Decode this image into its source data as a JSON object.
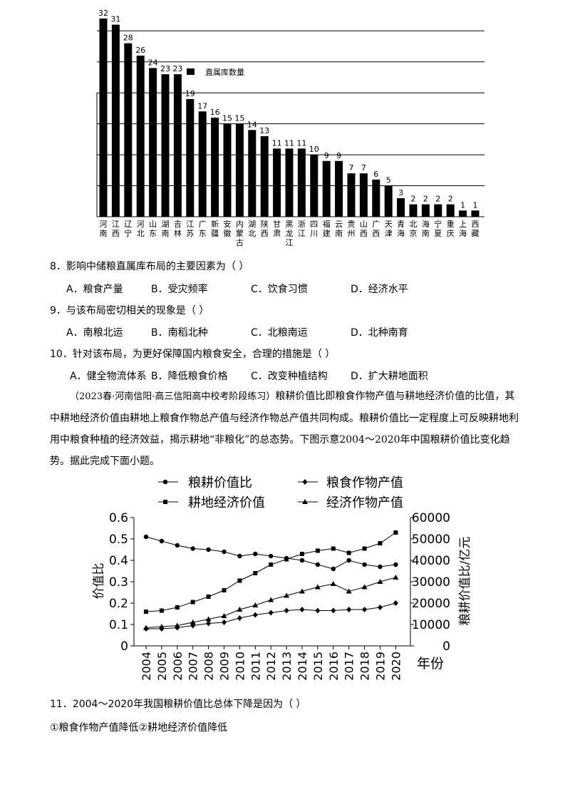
{
  "bar_chart": {
    "legend": "直属库数量",
    "provinces": [
      "河南",
      "江西",
      "辽宁",
      "河北",
      "山东",
      "湖南",
      "吉林",
      "江苏",
      "广东",
      "新疆",
      "安徽",
      "内蒙古",
      "湖北",
      "陕西",
      "甘肃",
      "黑龙江",
      "浙江",
      "四川",
      "福建",
      "云南",
      "贵州",
      "山西",
      "广西",
      "天津",
      "青海",
      "北京",
      "海南",
      "宁夏",
      "重庆",
      "上海",
      "西藏"
    ],
    "values": [
      32,
      31,
      28,
      26,
      24,
      23,
      23,
      19,
      17,
      16,
      15,
      15,
      14,
      13,
      11,
      11,
      11,
      10,
      9,
      9,
      7,
      7,
      6,
      5,
      3,
      2,
      2,
      2,
      2,
      1,
      1
    ]
  },
  "chart_data": [
    {
      "type": "bar",
      "legend": [
        "直属库数量"
      ],
      "categories": [
        "河南",
        "江西",
        "辽宁",
        "河北",
        "山东",
        "湖南",
        "吉林",
        "江苏",
        "广东",
        "新疆",
        "安徽",
        "内蒙古",
        "湖北",
        "陕西",
        "甘肃",
        "黑龙江",
        "浙江",
        "四川",
        "福建",
        "云南",
        "贵州",
        "山西",
        "广西",
        "天津",
        "青海",
        "北京",
        "海南",
        "宁夏",
        "重庆",
        "上海",
        "西藏"
      ],
      "series": [
        {
          "name": "直属库数量",
          "values": [
            32,
            31,
            28,
            26,
            24,
            23,
            23,
            19,
            17,
            16,
            15,
            15,
            14,
            13,
            11,
            11,
            11,
            10,
            9,
            9,
            7,
            7,
            6,
            5,
            3,
            2,
            2,
            2,
            2,
            1,
            1
          ]
        }
      ],
      "ylim": [
        0,
        35
      ],
      "grid": "horizontal"
    },
    {
      "type": "line",
      "x": [
        2004,
        2005,
        2006,
        2007,
        2008,
        2009,
        2010,
        2011,
        2012,
        2013,
        2014,
        2015,
        2016,
        2017,
        2018,
        2019,
        2020
      ],
      "xlabel": "年份",
      "ylabel": "价值比",
      "y2label": "粮耕价值比/亿元",
      "ylim": [
        0,
        0.6
      ],
      "y2lim": [
        0,
        60000
      ],
      "yticks": [
        "0",
        "0.1",
        "0.2",
        "0.3",
        "0.4",
        "0.5",
        "0.6"
      ],
      "y2ticks": [
        "0",
        "10000",
        "20000",
        "30000",
        "40000",
        "50000",
        "60000"
      ],
      "series": [
        {
          "name": "粮耕价值比",
          "axis": "left",
          "marker": "circle",
          "values": [
            0.51,
            0.49,
            0.47,
            0.455,
            0.45,
            0.44,
            0.42,
            0.43,
            0.42,
            0.41,
            0.4,
            0.38,
            0.36,
            0.4,
            0.38,
            0.37,
            0.38
          ]
        },
        {
          "name": "粮食作物产值",
          "axis": "right",
          "marker": "diamond",
          "values": [
            8000,
            8000,
            8500,
            9500,
            10500,
            11000,
            13000,
            14500,
            15500,
            16500,
            17000,
            16500,
            16500,
            17000,
            17000,
            18000,
            20000
          ]
        },
        {
          "name": "耕地经济价值",
          "axis": "right",
          "marker": "square",
          "values": [
            16000,
            16500,
            18000,
            20500,
            23000,
            26000,
            30500,
            34000,
            38000,
            40500,
            43000,
            44500,
            45500,
            43500,
            45500,
            48000,
            53000
          ]
        },
        {
          "name": "经济作物产值",
          "axis": "right",
          "marker": "triangle",
          "values": [
            8500,
            9000,
            9500,
            11000,
            12500,
            14000,
            17000,
            19000,
            21500,
            23500,
            25500,
            27500,
            29000,
            25500,
            27500,
            30000,
            32000
          ]
        }
      ]
    }
  ],
  "line_chart": {
    "legend": [
      "粮耕价值比",
      "粮食作物产值",
      "耕地经济价值",
      "经济作物产值"
    ],
    "yticks": [
      "0",
      "0.1",
      "0.2",
      "0.3",
      "0.4",
      "0.5",
      "0.6"
    ],
    "y2ticks": [
      "0",
      "10000",
      "20000",
      "30000",
      "40000",
      "50000",
      "60000"
    ],
    "years": [
      "2004",
      "2005",
      "2006",
      "2007",
      "2008",
      "2009",
      "2010",
      "2011",
      "2012",
      "2013",
      "2014",
      "2015",
      "2016",
      "2017",
      "2018",
      "2019",
      "2020"
    ],
    "ylabel": "价值比",
    "y2label": "粮耕价值比/亿元",
    "xlabel": "年份"
  },
  "questions": {
    "q8": {
      "stem": "8．影响中储粮直属库布局的主要因素为（   ）",
      "options": [
        "A．粮食产量",
        "B．受灾频率",
        "C．饮食习惯",
        "D．经济水平"
      ]
    },
    "q9": {
      "stem": "9．与该布局密切相关的现象是（   ）",
      "options": [
        "A．南粮北运",
        "B．南稻北种",
        "C．北粮南运",
        "D．北种南育"
      ]
    },
    "q10": {
      "stem": "10．针对该布局，为更好保障国内粮食安全，合理的措施是（   ）",
      "options": [
        "A．健全物流体系",
        "B．降低粮食价格",
        "C．改变种植结构",
        "D．扩大耕地面积"
      ]
    },
    "passage": {
      "source": "（2023春·河南信阳·高三信阳高中校考阶段练习）",
      "text": "粮耕价值比即粮食作物产值与耕地经济价值的比值，其中耕地经济价值由耕地上粮食作物总产值与经济作物总产值共同构成。粮耕价值比一定程度上可反映耕地利用中粮食种植的经济效益，揭示耕地“非粮化”的总态势。下图示意2004～2020年中国粮耕价值比变化趋势。据此完成下面小题。"
    },
    "q11": {
      "stem": "11．2004～2020年我国粮耕价值比总体下降是因为（   ）",
      "line2": "①粮食作物产值降低②耕地经济价值降低"
    }
  }
}
